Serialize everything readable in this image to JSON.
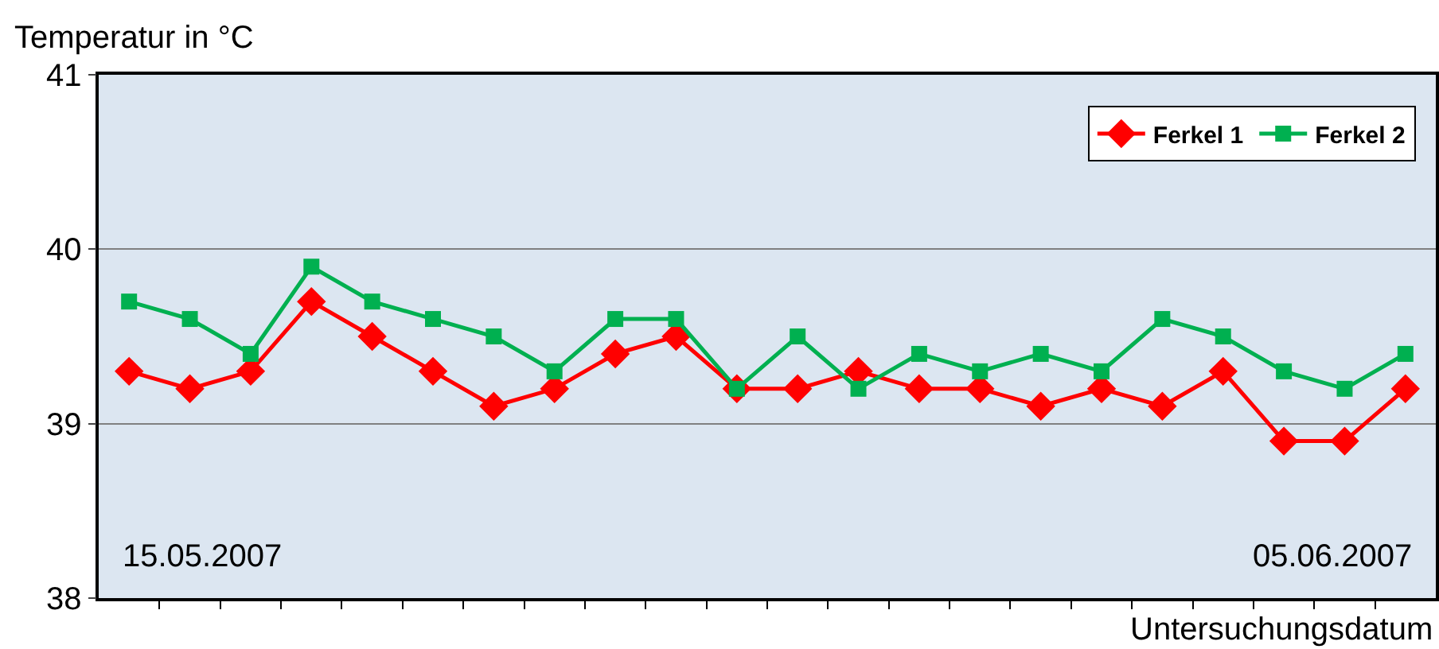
{
  "chart_data": {
    "type": "line",
    "ylabel": "Temperatur in °C",
    "xlabel": "Untersuchungsdatum",
    "categories": [
      null,
      null,
      null,
      null,
      null,
      null,
      null,
      null,
      null,
      null,
      null,
      null,
      null,
      null,
      null,
      null,
      null,
      null,
      null,
      null,
      null,
      null
    ],
    "series": [
      {
        "name": "Ferkel 1",
        "color": "#ff0000",
        "marker": "diamond",
        "values": [
          39.3,
          39.2,
          39.3,
          39.7,
          39.5,
          39.3,
          39.1,
          39.2,
          39.4,
          39.5,
          39.2,
          39.2,
          39.3,
          39.2,
          39.2,
          39.1,
          39.2,
          39.1,
          39.3,
          38.9,
          38.9,
          39.2
        ]
      },
      {
        "name": "Ferkel 2",
        "color": "#00b050",
        "marker": "square",
        "values": [
          39.7,
          39.6,
          39.4,
          39.9,
          39.7,
          39.6,
          39.5,
          39.3,
          39.6,
          39.6,
          39.2,
          39.5,
          39.2,
          39.4,
          39.3,
          39.4,
          39.3,
          39.6,
          39.5,
          39.3,
          39.2,
          39.4
        ]
      }
    ],
    "annotations": [
      "15.05.2007",
      "05.06.2007"
    ],
    "ylim": [
      38,
      41
    ],
    "yticks": [
      38,
      39,
      40,
      41
    ],
    "grid": "y",
    "legend": "top right",
    "line_style": "solid"
  }
}
